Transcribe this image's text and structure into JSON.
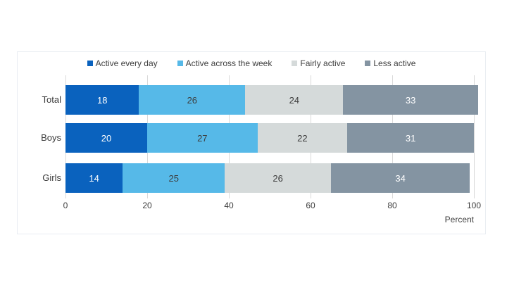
{
  "chart_data": {
    "type": "bar",
    "orientation": "horizontal_stacked",
    "title": "",
    "categories": [
      "Total",
      "Boys",
      "Girls"
    ],
    "series": [
      {
        "name": "Active every day",
        "color": "#0a62be",
        "label_color": "#ffffff",
        "values": [
          18,
          20,
          14
        ]
      },
      {
        "name": "Active across the week",
        "color": "#56b9e8",
        "label_color": "#3d3d3d",
        "values": [
          26,
          27,
          25
        ]
      },
      {
        "name": "Fairly active",
        "color": "#d5dada",
        "label_color": "#3d3d3d",
        "values": [
          24,
          22,
          26
        ]
      },
      {
        "name": "Less active",
        "color": "#8494a2",
        "label_color": "#ffffff",
        "values": [
          33,
          31,
          34
        ]
      }
    ],
    "xlabel": "Percent",
    "xlim": [
      0,
      100
    ],
    "xticks": [
      0,
      20,
      40,
      60,
      80,
      100
    ],
    "grid": true,
    "gridline_color": "#d9d9d9",
    "legend_position": "top",
    "frame_color": "#e9edf2"
  }
}
